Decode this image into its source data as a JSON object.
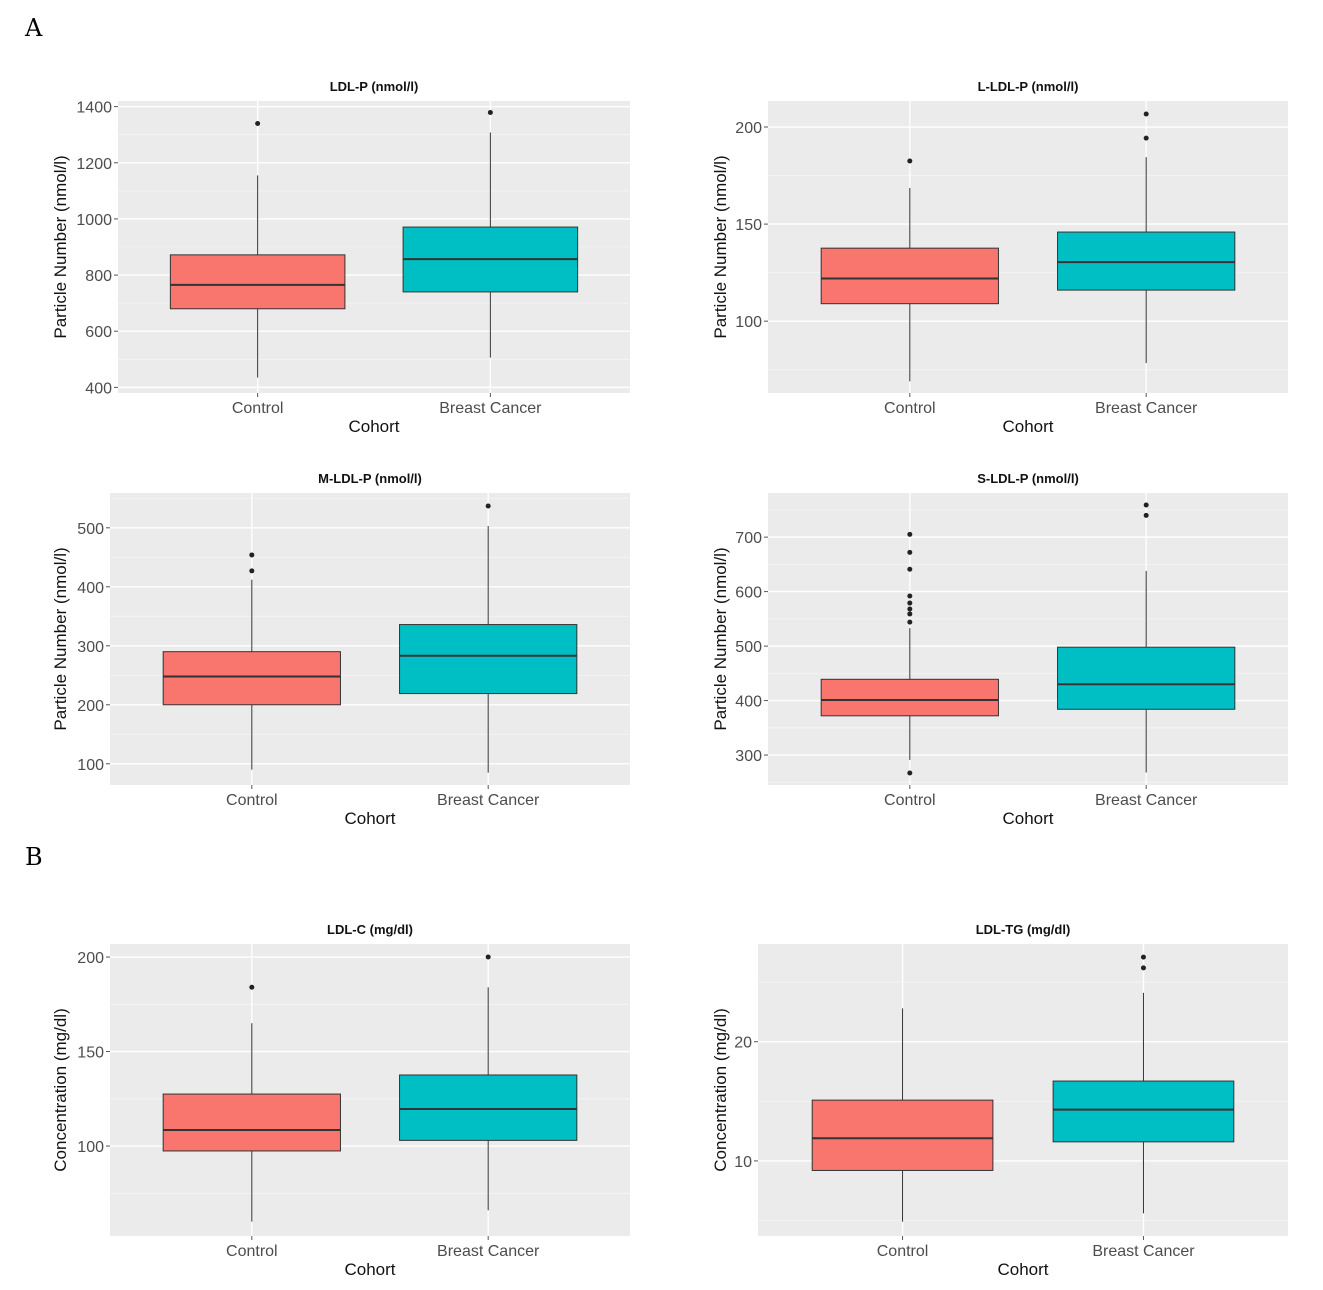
{
  "section_labels": [
    "A",
    "B"
  ],
  "colors": {
    "control": "#F8766D",
    "breast_cancer": "#00BFC4",
    "panel_bg": "#EBEBEB",
    "grid": "#FFFFFF",
    "outline": "#333333"
  },
  "chart_data": [
    {
      "type": "boxplot",
      "title": "LDL-P (nmol/l)",
      "xlabel": "Cohort",
      "ylabel": "Particle Number (nmol/l)",
      "categories": [
        "Control",
        "Breast Cancer"
      ],
      "ylim": [
        380,
        1420
      ],
      "yticks": [
        400,
        600,
        800,
        1000,
        1200,
        1400
      ],
      "boxes": [
        {
          "min": 435,
          "q1": 680,
          "median": 765,
          "q3": 872,
          "max": 1155,
          "outliers": [
            1340
          ]
        },
        {
          "min": 506,
          "q1": 740,
          "median": 857,
          "q3": 971,
          "max": 1308,
          "outliers": [
            1379
          ]
        }
      ]
    },
    {
      "type": "boxplot",
      "title": "L-LDL-P (nmol/l)",
      "xlabel": "Cohort",
      "ylabel": "Particle Number (nmol/l)",
      "categories": [
        "Control",
        "Breast Cancer"
      ],
      "ylim": [
        63,
        213.4
      ],
      "yticks": [
        100,
        150,
        200
      ],
      "boxes": [
        {
          "min": 69,
          "q1": 109,
          "median": 122,
          "q3": 137.6,
          "max": 168.6,
          "outliers": [
            182.5
          ]
        },
        {
          "min": 78.4,
          "q1": 116,
          "median": 130.4,
          "q3": 145.9,
          "max": 184.5,
          "outliers": [
            194.3,
            206.7
          ]
        }
      ]
    },
    {
      "type": "boxplot",
      "title": "M-LDL-P (nmol/l)",
      "xlabel": "Cohort",
      "ylabel": "Particle Number (nmol/l)",
      "categories": [
        "Control",
        "Breast Cancer"
      ],
      "ylim": [
        64,
        559
      ],
      "yticks": [
        100,
        200,
        300,
        400,
        500
      ],
      "boxes": [
        {
          "min": 90,
          "q1": 200,
          "median": 248,
          "q3": 290,
          "max": 412,
          "outliers": [
            427,
            454
          ]
        },
        {
          "min": 85,
          "q1": 219,
          "median": 283,
          "q3": 336,
          "max": 503,
          "outliers": [
            537
          ]
        }
      ]
    },
    {
      "type": "boxplot",
      "title": "S-LDL-P (nmol/l)",
      "xlabel": "Cohort",
      "ylabel": "Particle Number (nmol/l)",
      "categories": [
        "Control",
        "Breast Cancer"
      ],
      "ylim": [
        245,
        781
      ],
      "yticks": [
        300,
        400,
        500,
        600,
        700
      ],
      "boxes": [
        {
          "min": 291,
          "q1": 372,
          "median": 401,
          "q3": 439,
          "max": 533,
          "outliers": [
            267,
            544,
            559,
            568,
            579,
            592,
            641,
            672,
            705
          ]
        },
        {
          "min": 268,
          "q1": 384,
          "median": 430,
          "q3": 498,
          "max": 638,
          "outliers": [
            740,
            759
          ]
        }
      ]
    },
    {
      "type": "boxplot",
      "title": "LDL-C (mg/dl)",
      "xlabel": "Cohort",
      "ylabel": "Concentration (mg/dl)",
      "categories": [
        "Control",
        "Breast Cancer"
      ],
      "ylim": [
        52.4,
        206.9
      ],
      "yticks": [
        100,
        150,
        200
      ],
      "boxes": [
        {
          "min": 60,
          "q1": 97.4,
          "median": 108.5,
          "q3": 127.5,
          "max": 165,
          "outliers": [
            184
          ]
        },
        {
          "min": 66,
          "q1": 103,
          "median": 119.6,
          "q3": 137.6,
          "max": 184,
          "outliers": [
            200
          ]
        }
      ]
    },
    {
      "type": "boxplot",
      "title": "LDL-TG (mg/dl)",
      "xlabel": "Cohort",
      "ylabel": "Concentration (mg/dl)",
      "categories": [
        "Control",
        "Breast Cancer"
      ],
      "ylim": [
        3.7,
        28.2
      ],
      "yticks": [
        10,
        20
      ],
      "boxes": [
        {
          "min": 4.9,
          "q1": 9.2,
          "median": 11.9,
          "q3": 15.1,
          "max": 22.8,
          "outliers": []
        },
        {
          "min": 5.6,
          "q1": 11.6,
          "median": 14.3,
          "q3": 16.7,
          "max": 24.1,
          "outliers": [
            26.2,
            27.1
          ]
        }
      ]
    }
  ]
}
